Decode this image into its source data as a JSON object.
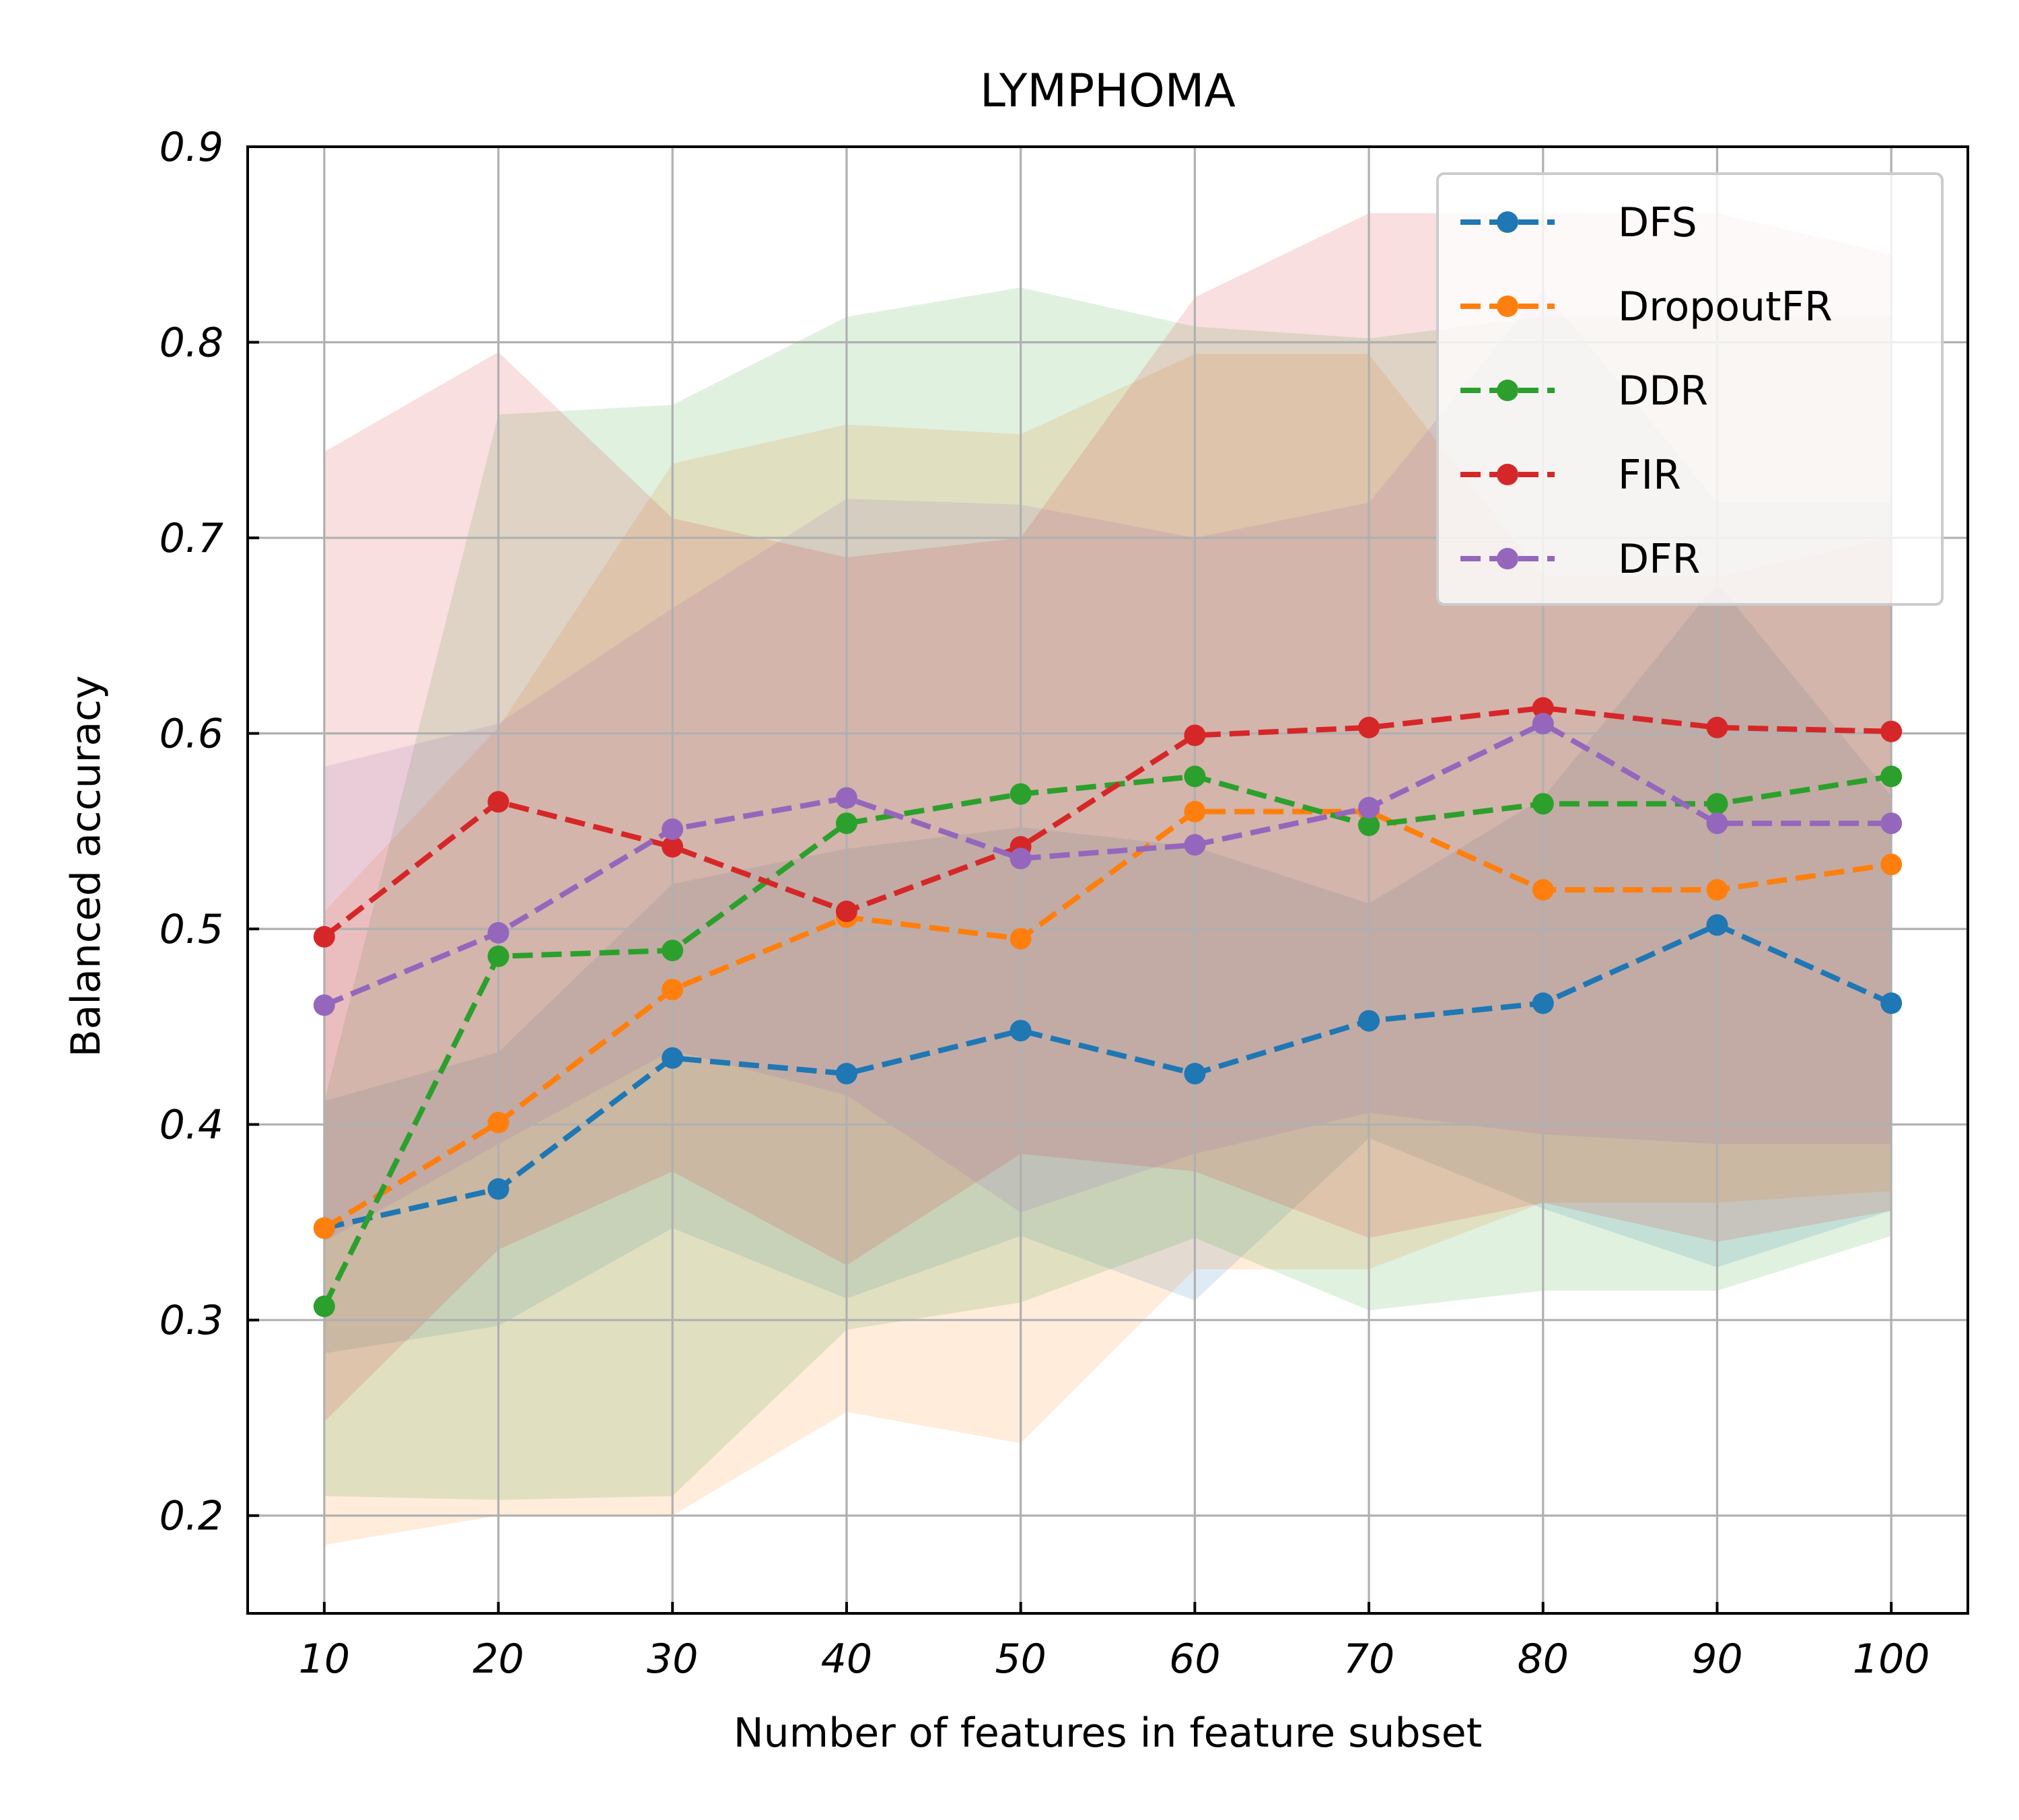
{
  "chart_data": {
    "type": "line",
    "title": "LYMPHOMA",
    "xlabel": "Number of features in feature subset",
    "ylabel": "Balanced accuracy",
    "x": [
      10,
      20,
      30,
      40,
      50,
      60,
      70,
      80,
      90,
      100
    ],
    "x_tick_labels": [
      "10",
      "20",
      "30",
      "40",
      "50",
      "60",
      "70",
      "80",
      "90",
      "100"
    ],
    "xlim": [
      5.6,
      104.4
    ],
    "ylim": [
      0.15,
      0.9
    ],
    "y_ticks": [
      0.2,
      0.3,
      0.4,
      0.5,
      0.6,
      0.7,
      0.8,
      0.9
    ],
    "y_tick_labels": [
      "0.2",
      "0.3",
      "0.4",
      "0.5",
      "0.6",
      "0.7",
      "0.8",
      "0.9"
    ],
    "grid": true,
    "legend_position": "top-right",
    "line_style": "dashed",
    "marker": "circle",
    "series": [
      {
        "name": "DFS",
        "color": "#1f77b4",
        "values": [
          0.347,
          0.367,
          0.434,
          0.426,
          0.448,
          0.426,
          0.453,
          0.462,
          0.502,
          0.462
        ],
        "upper": [
          0.412,
          0.437,
          0.523,
          0.541,
          0.552,
          0.542,
          0.513,
          0.567,
          0.677,
          0.568
        ],
        "lower": [
          0.283,
          0.297,
          0.347,
          0.311,
          0.343,
          0.31,
          0.393,
          0.357,
          0.327,
          0.356
        ]
      },
      {
        "name": "DropoutFR",
        "color": "#ff7f0e",
        "values": [
          0.347,
          0.401,
          0.469,
          0.506,
          0.495,
          0.56,
          0.56,
          0.52,
          0.52,
          0.533
        ],
        "upper": [
          0.509,
          0.603,
          0.738,
          0.758,
          0.753,
          0.794,
          0.794,
          0.68,
          0.68,
          0.7
        ],
        "lower": [
          0.185,
          0.2,
          0.2,
          0.253,
          0.237,
          0.326,
          0.326,
          0.36,
          0.36,
          0.366
        ]
      },
      {
        "name": "DDR",
        "color": "#2ca02c",
        "values": [
          0.307,
          0.486,
          0.489,
          0.554,
          0.569,
          0.578,
          0.553,
          0.564,
          0.564,
          0.578
        ],
        "upper": [
          0.412,
          0.763,
          0.768,
          0.813,
          0.828,
          0.808,
          0.802,
          0.813,
          0.813,
          0.813
        ],
        "lower": [
          0.21,
          0.208,
          0.21,
          0.295,
          0.309,
          0.342,
          0.305,
          0.315,
          0.315,
          0.343
        ]
      },
      {
        "name": "FIR",
        "color": "#d62728",
        "values": [
          0.496,
          0.565,
          0.542,
          0.509,
          0.542,
          0.599,
          0.603,
          0.613,
          0.603,
          0.601
        ],
        "upper": [
          0.744,
          0.795,
          0.71,
          0.69,
          0.7,
          0.823,
          0.866,
          0.866,
          0.866,
          0.845
        ],
        "lower": [
          0.248,
          0.336,
          0.376,
          0.328,
          0.385,
          0.376,
          0.342,
          0.36,
          0.34,
          0.356
        ]
      },
      {
        "name": "DFR",
        "color": "#9467bd",
        "values": [
          0.461,
          0.498,
          0.551,
          0.567,
          0.536,
          0.543,
          0.562,
          0.605,
          0.554,
          0.554
        ],
        "upper": [
          0.583,
          0.605,
          0.664,
          0.72,
          0.717,
          0.7,
          0.718,
          0.827,
          0.718,
          0.718
        ],
        "lower": [
          0.34,
          0.39,
          0.438,
          0.415,
          0.355,
          0.385,
          0.406,
          0.395,
          0.39,
          0.39
        ]
      }
    ]
  }
}
